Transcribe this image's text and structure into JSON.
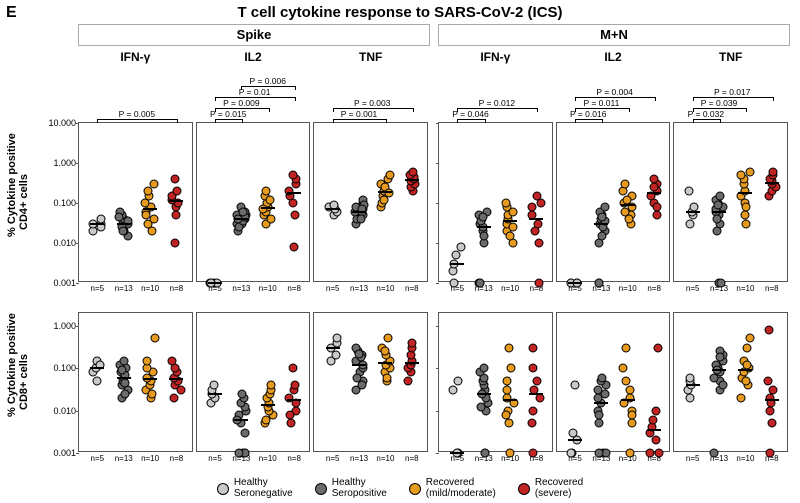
{
  "panel_letter": "E",
  "main_title": "T cell cytokine response to SARS-CoV-2 (ICS)",
  "antigens": [
    "Spike",
    "M+N"
  ],
  "cytokines": [
    "IFN-γ",
    "IL2",
    "TNF"
  ],
  "rows": [
    {
      "ylabel": "% Cytokine positive\nCD4+ cells"
    },
    {
      "ylabel": "% Cytokine positive\nCD8+ cells"
    }
  ],
  "groups": [
    {
      "key": "hsn",
      "color": "#c9c9c9",
      "n": "n=5",
      "legend": "Healthy\nSeronegative"
    },
    {
      "key": "hsp",
      "color": "#6b6b6b",
      "n": "n=13",
      "legend": "Healthy\nSeropositive"
    },
    {
      "key": "rmm",
      "color": "#e69b1f",
      "n": "n=10",
      "legend": "Recovered\n(mild/moderate)"
    },
    {
      "key": "rs",
      "color": "#c02424",
      "n": "n=8",
      "legend": "Recovered\n(severe)"
    }
  ],
  "yaxis": {
    "ticks": [
      0.001,
      0.01,
      0.1,
      1.0,
      10.0
    ],
    "labels": [
      "0.001",
      "0.010",
      "0.100",
      "1.000",
      "10.000"
    ],
    "min_log": -3,
    "max_log_row0": 1,
    "max_log_row1": 0.3
  },
  "style": {
    "point_size": 9,
    "median_width": 14,
    "panel_border_color": "#555555",
    "background": "#ffffff",
    "jitter": 6
  },
  "pvalues": {
    "row0": {
      "0": [
        {
          "from": 0,
          "to": 3,
          "p": "P = 0.005",
          "level": 0
        }
      ],
      "1": [
        {
          "from": 0,
          "to": 1,
          "p": "P = 0.015",
          "level": 0
        },
        {
          "from": 0,
          "to": 2,
          "p": "P = 0.009",
          "level": 1
        },
        {
          "from": 0,
          "to": 3,
          "p": "P = 0.01",
          "level": 2
        },
        {
          "from": 1,
          "to": 3,
          "p": "P = 0.006",
          "level": 3
        }
      ],
      "2": [
        {
          "from": 0,
          "to": 2,
          "p": "P = 0.001",
          "level": 0
        },
        {
          "from": 0,
          "to": 3,
          "p": "P = 0.003",
          "level": 1
        }
      ],
      "3": [
        {
          "from": 0,
          "to": 1,
          "p": "P = 0.046",
          "level": 0
        },
        {
          "from": 0,
          "to": 3,
          "p": "P = 0.012",
          "level": 1
        }
      ],
      "4": [
        {
          "from": 0,
          "to": 1,
          "p": "P = 0.016",
          "level": 0
        },
        {
          "from": 0,
          "to": 2,
          "p": "P = 0.011",
          "level": 1
        },
        {
          "from": 0,
          "to": 3,
          "p": "P = 0.004",
          "level": 2
        }
      ],
      "5": [
        {
          "from": 0,
          "to": 1,
          "p": "P = 0.032",
          "level": 0
        },
        {
          "from": 0,
          "to": 2,
          "p": "P = 0.039",
          "level": 1
        },
        {
          "from": 0,
          "to": 3,
          "p": "P = 0.017",
          "level": 2
        }
      ]
    }
  },
  "data": {
    "row0": [
      {
        "hsn": [
          0.02,
          0.03,
          0.04,
          0.03,
          0.025
        ],
        "hsp": [
          0.015,
          0.02,
          0.025,
          0.03,
          0.035,
          0.04,
          0.05,
          0.06,
          0.03,
          0.025,
          0.02,
          0.045,
          0.035
        ],
        "rmm": [
          0.02,
          0.03,
          0.04,
          0.06,
          0.08,
          0.1,
          0.15,
          0.2,
          0.3,
          0.05
        ],
        "rs": [
          0.05,
          0.08,
          0.1,
          0.12,
          0.15,
          0.2,
          0.4,
          0.01
        ]
      },
      {
        "hsn": [
          0.001,
          0.001,
          0.001,
          0.001,
          0.001
        ],
        "hsp": [
          0.02,
          0.03,
          0.04,
          0.05,
          0.06,
          0.08,
          0.03,
          0.025,
          0.035,
          0.045,
          0.05,
          0.04,
          0.06
        ],
        "rmm": [
          0.03,
          0.05,
          0.06,
          0.08,
          0.1,
          0.15,
          0.2,
          0.04,
          0.07,
          0.12
        ],
        "rs": [
          0.05,
          0.1,
          0.15,
          0.2,
          0.3,
          0.4,
          0.5,
          0.008
        ]
      },
      {
        "hsn": [
          0.05,
          0.06,
          0.07,
          0.08,
          0.09
        ],
        "hsp": [
          0.03,
          0.04,
          0.05,
          0.06,
          0.07,
          0.08,
          0.1,
          0.12,
          0.05,
          0.06,
          0.04,
          0.09,
          0.07
        ],
        "rmm": [
          0.08,
          0.1,
          0.15,
          0.2,
          0.3,
          0.4,
          0.5,
          0.12,
          0.25,
          0.18
        ],
        "rs": [
          0.2,
          0.25,
          0.3,
          0.35,
          0.4,
          0.45,
          0.5,
          0.6
        ]
      },
      {
        "hsn": [
          0.001,
          0.002,
          0.003,
          0.005,
          0.008
        ],
        "hsp": [
          0.001,
          0.001,
          0.001,
          0.01,
          0.02,
          0.03,
          0.04,
          0.05,
          0.06,
          0.025,
          0.035,
          0.015,
          0.045
        ],
        "rmm": [
          0.01,
          0.02,
          0.03,
          0.04,
          0.05,
          0.08,
          0.1,
          0.015,
          0.06,
          0.025
        ],
        "rs": [
          0.01,
          0.02,
          0.03,
          0.05,
          0.08,
          0.1,
          0.15,
          0.001
        ]
      },
      {
        "hsn": [
          0.001,
          0.001,
          0.001,
          0.001,
          0.001
        ],
        "hsp": [
          0.001,
          0.001,
          0.01,
          0.02,
          0.03,
          0.04,
          0.05,
          0.06,
          0.08,
          0.025,
          0.035,
          0.045,
          0.015
        ],
        "rmm": [
          0.03,
          0.05,
          0.08,
          0.1,
          0.15,
          0.2,
          0.3,
          0.06,
          0.12,
          0.04
        ],
        "rs": [
          0.05,
          0.1,
          0.15,
          0.2,
          0.3,
          0.4,
          0.08,
          0.25
        ]
      },
      {
        "hsn": [
          0.03,
          0.05,
          0.06,
          0.08,
          0.2
        ],
        "hsp": [
          0.001,
          0.001,
          0.02,
          0.03,
          0.05,
          0.06,
          0.08,
          0.1,
          0.12,
          0.15,
          0.04,
          0.07,
          0.09
        ],
        "rmm": [
          0.03,
          0.05,
          0.1,
          0.15,
          0.2,
          0.3,
          0.4,
          0.5,
          0.6,
          0.08
        ],
        "rs": [
          0.15,
          0.2,
          0.25,
          0.3,
          0.35,
          0.4,
          0.5,
          0.6
        ]
      }
    ],
    "row1": [
      {
        "hsn": [
          0.05,
          0.08,
          0.1,
          0.15,
          0.12
        ],
        "hsp": [
          0.02,
          0.03,
          0.04,
          0.05,
          0.06,
          0.08,
          0.1,
          0.12,
          0.15,
          0.025,
          0.045,
          0.07,
          0.09
        ],
        "rmm": [
          0.02,
          0.03,
          0.04,
          0.05,
          0.06,
          0.08,
          0.1,
          0.15,
          0.5,
          0.025
        ],
        "rs": [
          0.02,
          0.03,
          0.04,
          0.05,
          0.06,
          0.08,
          0.1,
          0.15
        ]
      },
      {
        "hsn": [
          0.015,
          0.02,
          0.025,
          0.03,
          0.04
        ],
        "hsp": [
          0.001,
          0.001,
          0.001,
          0.001,
          0.005,
          0.008,
          0.01,
          0.012,
          0.015,
          0.02,
          0.025,
          0.006,
          0.003
        ],
        "rmm": [
          0.005,
          0.008,
          0.01,
          0.012,
          0.015,
          0.02,
          0.025,
          0.03,
          0.006,
          0.04
        ],
        "rs": [
          0.005,
          0.01,
          0.015,
          0.02,
          0.03,
          0.04,
          0.1,
          0.008
        ]
      },
      {
        "hsn": [
          0.15,
          0.2,
          0.3,
          0.4,
          0.5
        ],
        "hsp": [
          0.03,
          0.05,
          0.08,
          0.1,
          0.12,
          0.15,
          0.2,
          0.25,
          0.3,
          0.06,
          0.18,
          0.04,
          0.22
        ],
        "rmm": [
          0.05,
          0.08,
          0.1,
          0.12,
          0.15,
          0.2,
          0.3,
          0.5,
          0.06,
          0.25
        ],
        "rs": [
          0.05,
          0.08,
          0.1,
          0.12,
          0.15,
          0.2,
          0.3,
          0.4
        ]
      },
      {
        "hsn": [
          0.001,
          0.001,
          0.001,
          0.03,
          0.05
        ],
        "hsp": [
          0.001,
          0.001,
          0.01,
          0.015,
          0.02,
          0.03,
          0.04,
          0.05,
          0.06,
          0.08,
          0.1,
          0.025,
          0.012
        ],
        "rmm": [
          0.001,
          0.005,
          0.01,
          0.02,
          0.03,
          0.05,
          0.1,
          0.3,
          0.015,
          0.008
        ],
        "rs": [
          0.001,
          0.005,
          0.01,
          0.02,
          0.03,
          0.05,
          0.1,
          0.3
        ]
      },
      {
        "hsn": [
          0.001,
          0.001,
          0.002,
          0.003,
          0.04
        ],
        "hsp": [
          0.001,
          0.001,
          0.001,
          0.005,
          0.01,
          0.015,
          0.02,
          0.03,
          0.04,
          0.05,
          0.06,
          0.008,
          0.025
        ],
        "rmm": [
          0.001,
          0.005,
          0.01,
          0.02,
          0.03,
          0.05,
          0.1,
          0.3,
          0.008,
          0.015
        ],
        "rs": [
          0.001,
          0.001,
          0.002,
          0.003,
          0.004,
          0.006,
          0.01,
          0.3
        ]
      },
      {
        "hsn": [
          0.02,
          0.03,
          0.04,
          0.05,
          0.06
        ],
        "hsp": [
          0.001,
          0.03,
          0.05,
          0.08,
          0.1,
          0.15,
          0.2,
          0.25,
          0.06,
          0.12,
          0.04,
          0.18,
          0.09
        ],
        "rmm": [
          0.02,
          0.04,
          0.06,
          0.08,
          0.1,
          0.15,
          0.3,
          0.5,
          0.05,
          0.12
        ],
        "rs": [
          0.001,
          0.005,
          0.01,
          0.02,
          0.03,
          0.05,
          0.8,
          0.015
        ]
      }
    ]
  }
}
